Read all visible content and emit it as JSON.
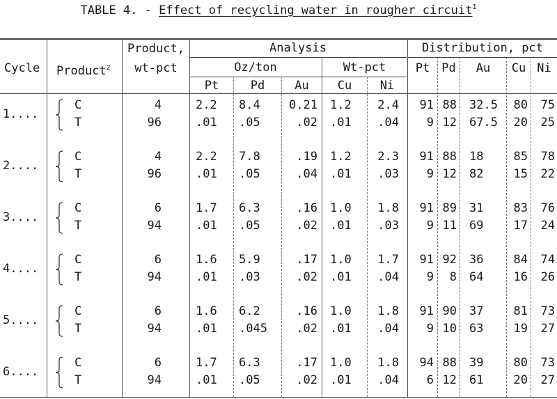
{
  "table": {
    "title_prefix": "TABLE 4. -",
    "title_name": "Effect of recycling water in rougher circuit",
    "title_footnote": "1",
    "headers": {
      "cycle": "Cycle",
      "product": "Product",
      "product_footnote": "2",
      "product_wt_line1": "Product,",
      "product_wt_line2": "wt-pct",
      "analysis": "Analysis",
      "oz_ton": "Oz/ton",
      "wt_pct": "Wt-pct",
      "distribution": "Distribution, pct",
      "pt": "Pt",
      "pd": "Pd",
      "au": "Au",
      "cu": "Cu",
      "ni": "Ni",
      "dpt": "Pt",
      "dpd": "Pd",
      "dau": "Au",
      "dcu": "Cu",
      "dni": "Ni"
    },
    "rows": [
      {
        "cycle": "1....",
        "C": {
          "product": "C",
          "wt": "4",
          "pt": "2.2",
          "pd": "8.4",
          "au": "0.21",
          "cu": "1.2",
          "ni": "2.4",
          "dpt": "91",
          "dpd": "88",
          "dau": "32.5",
          "dcu": "80",
          "dni": "75"
        },
        "T": {
          "product": "T",
          "wt": "96",
          "pt": ".01",
          "pd": ".05",
          "au": ".02",
          "cu": ".01",
          "ni": ".04",
          "dpt": "9",
          "dpd": "12",
          "dau": "67.5",
          "dcu": "20",
          "dni": "25"
        }
      },
      {
        "cycle": "2....",
        "C": {
          "product": "C",
          "wt": "4",
          "pt": "2.2",
          "pd": "7.8",
          "au": ".19",
          "cu": "1.2",
          "ni": "2.3",
          "dpt": "91",
          "dpd": "88",
          "dau": "18",
          "dcu": "85",
          "dni": "78"
        },
        "T": {
          "product": "T",
          "wt": "96",
          "pt": ".01",
          "pd": ".05",
          "au": ".04",
          "cu": ".01",
          "ni": ".03",
          "dpt": "9",
          "dpd": "12",
          "dau": "82",
          "dcu": "15",
          "dni": "22"
        }
      },
      {
        "cycle": "3....",
        "C": {
          "product": "C",
          "wt": "6",
          "pt": "1.7",
          "pd": "6.3",
          "au": ".16",
          "cu": "1.0",
          "ni": "1.8",
          "dpt": "91",
          "dpd": "89",
          "dau": "31",
          "dcu": "83",
          "dni": "76"
        },
        "T": {
          "product": "T",
          "wt": "94",
          "pt": ".01",
          "pd": ".05",
          "au": ".02",
          "cu": ".01",
          "ni": ".03",
          "dpt": "9",
          "dpd": "11",
          "dau": "69",
          "dcu": "17",
          "dni": "24"
        }
      },
      {
        "cycle": "4....",
        "C": {
          "product": "C",
          "wt": "6",
          "pt": "1.6",
          "pd": "5.9",
          "au": ".17",
          "cu": "1.0",
          "ni": "1.7",
          "dpt": "91",
          "dpd": "92",
          "dau": "36",
          "dcu": "84",
          "dni": "74"
        },
        "T": {
          "product": "T",
          "wt": "94",
          "pt": ".01",
          "pd": ".03",
          "au": ".02",
          "cu": ".01",
          "ni": ".04",
          "dpt": "9",
          "dpd": "8",
          "dau": "64",
          "dcu": "16",
          "dni": "26"
        }
      },
      {
        "cycle": "5....",
        "C": {
          "product": "C",
          "wt": "6",
          "pt": "1.6",
          "pd": "6.2",
          "au": ".16",
          "cu": "1.0",
          "ni": "1.8",
          "dpt": "91",
          "dpd": "90",
          "dau": "37",
          "dcu": "81",
          "dni": "73"
        },
        "T": {
          "product": "T",
          "wt": "94",
          "pt": ".01",
          "pd": ".045",
          "au": ".02",
          "cu": ".01",
          "ni": ".04",
          "dpt": "9",
          "dpd": "10",
          "dau": "63",
          "dcu": "19",
          "dni": "27"
        }
      },
      {
        "cycle": "6....",
        "C": {
          "product": "C",
          "wt": "6",
          "pt": "1.7",
          "pd": "6.3",
          "au": ".17",
          "cu": "1.0",
          "ni": "1.8",
          "dpt": "94",
          "dpd": "88",
          "dau": "39",
          "dcu": "80",
          "dni": "73"
        },
        "T": {
          "product": "T",
          "wt": "94",
          "pt": ".01",
          "pd": ".05",
          "au": ".02",
          "cu": ".01",
          "ni": ".04",
          "dpt": "6",
          "dpd": "12",
          "dau": "61",
          "dcu": "20",
          "dni": "27"
        }
      }
    ]
  }
}
